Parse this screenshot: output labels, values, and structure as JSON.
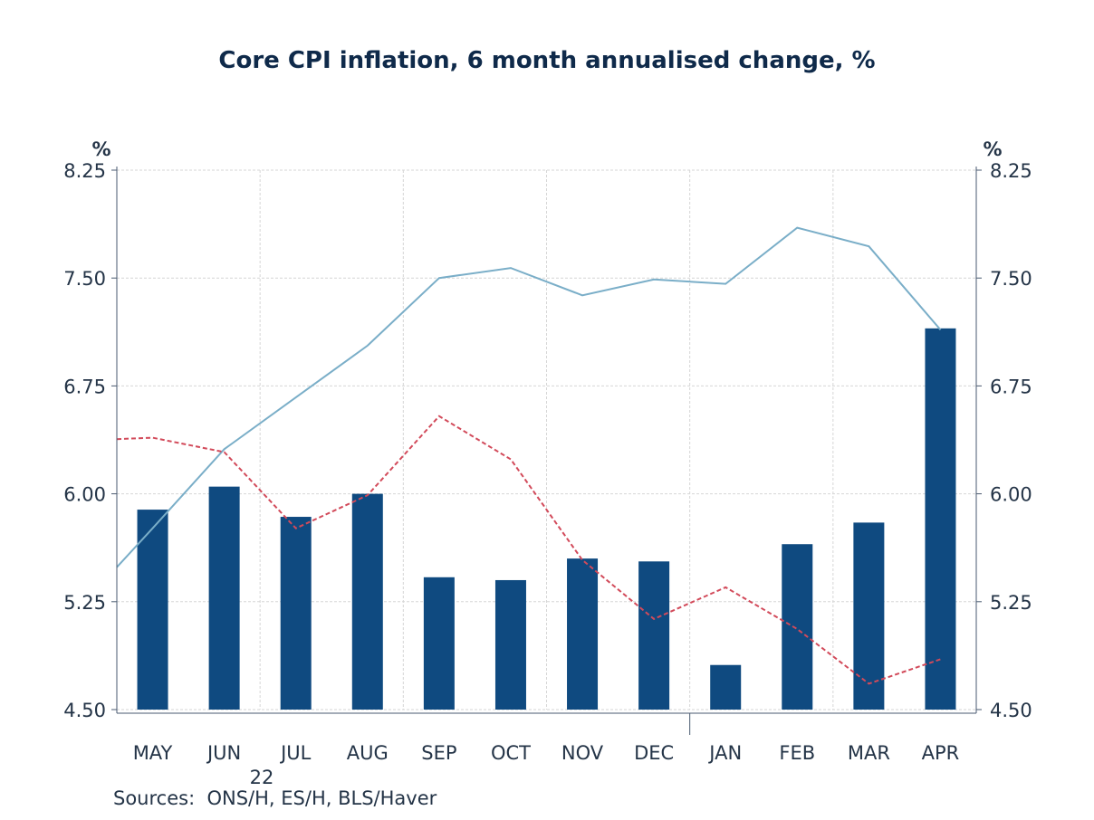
{
  "chart_data": {
    "type": "bar",
    "title": "Core CPI inflation, 6 month annualised change, %",
    "categories": [
      "MAY",
      "JUN",
      "JUL",
      "AUG",
      "SEP",
      "OCT",
      "NOV",
      "DEC",
      "JAN",
      "FEB",
      "MAR",
      "APR"
    ],
    "year_label": "22",
    "series": [
      {
        "type": "bar",
        "color": "#0f4a80",
        "values": [
          5.89,
          6.05,
          5.84,
          6.0,
          5.42,
          5.4,
          5.55,
          5.53,
          4.81,
          5.65,
          5.8,
          7.15
        ]
      },
      {
        "type": "line",
        "style": "solid",
        "color": "#7aaec8",
        "x": [
          -0.5,
          0,
          1,
          2,
          3,
          4,
          5,
          6,
          7,
          8,
          9,
          10,
          11
        ],
        "values": [
          5.49,
          5.76,
          6.31,
          6.67,
          7.03,
          7.5,
          7.57,
          7.38,
          7.49,
          7.46,
          7.85,
          7.72,
          7.14
        ]
      },
      {
        "type": "line",
        "style": "dashed",
        "color": "#d24a5a",
        "x": [
          -0.5,
          0,
          1,
          2,
          3,
          4,
          5,
          6,
          7,
          8,
          9,
          10,
          11
        ],
        "values": [
          6.38,
          6.39,
          6.29,
          5.76,
          5.99,
          6.54,
          6.24,
          5.54,
          5.13,
          5.35,
          5.06,
          4.68,
          4.85
        ]
      }
    ],
    "y_left": {
      "unit": "%",
      "min": 4.5,
      "max": 8.25,
      "ticks": [
        "4.50",
        "5.25",
        "6.00",
        "6.75",
        "7.50",
        "8.25"
      ]
    },
    "y_right": {
      "unit": "%",
      "min": 4.5,
      "max": 8.25,
      "ticks": [
        "4.50",
        "5.25",
        "6.00",
        "6.75",
        "7.50",
        "8.25"
      ]
    },
    "grid": true,
    "legend": "none"
  },
  "sources": "Sources:  ONS/H, ES/H, BLS/Haver"
}
